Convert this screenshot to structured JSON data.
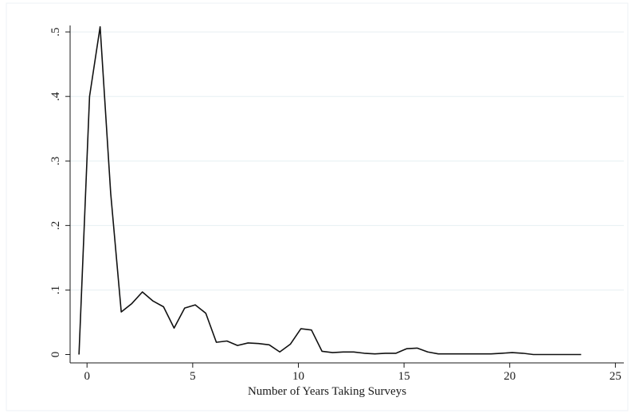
{
  "chart_data": {
    "type": "line",
    "title": "",
    "xlabel": "Number of Years Taking Surveys",
    "ylabel": "",
    "xlim": [
      -0.8,
      25.4
    ],
    "ylim": [
      -0.008,
      0.51
    ],
    "x_ticks": [
      0,
      5,
      10,
      15,
      20,
      25
    ],
    "x_tick_labels": [
      "0",
      "5",
      "10",
      "15",
      "20",
      "25"
    ],
    "y_ticks": [
      0,
      0.1,
      0.2,
      0.3,
      0.4,
      0.5
    ],
    "y_tick_labels": [
      "0",
      ".1",
      ".2",
      ".3",
      ".4",
      ".5"
    ],
    "grid": true,
    "legend": "none",
    "series": [
      {
        "color": "#111111",
        "x": [
          -0.38,
          0.12,
          0.62,
          1.12,
          1.62,
          2.12,
          2.62,
          3.12,
          3.62,
          4.12,
          4.62,
          5.12,
          5.62,
          6.12,
          6.62,
          7.12,
          7.62,
          8.12,
          8.62,
          9.12,
          9.62,
          10.12,
          10.62,
          11.12,
          11.62,
          12.12,
          12.62,
          13.12,
          13.62,
          14.12,
          14.62,
          15.12,
          15.62,
          16.12,
          16.62,
          17.12,
          17.62,
          18.12,
          18.62,
          19.12,
          19.62,
          20.12,
          20.62,
          21.12,
          21.62,
          22.12,
          22.62,
          23.12,
          23.38
        ],
        "y": [
          0.0,
          0.4,
          0.508,
          0.25,
          0.066,
          0.079,
          0.097,
          0.083,
          0.074,
          0.041,
          0.072,
          0.077,
          0.064,
          0.019,
          0.021,
          0.014,
          0.018,
          0.017,
          0.015,
          0.004,
          0.016,
          0.04,
          0.038,
          0.005,
          0.003,
          0.004,
          0.004,
          0.002,
          0.001,
          0.002,
          0.002,
          0.009,
          0.01,
          0.004,
          0.001,
          0.001,
          0.001,
          0.001,
          0.001,
          0.001,
          0.002,
          0.003,
          0.002,
          0.0,
          0.0,
          0.0,
          0.0,
          0.0,
          0.0
        ]
      }
    ]
  }
}
